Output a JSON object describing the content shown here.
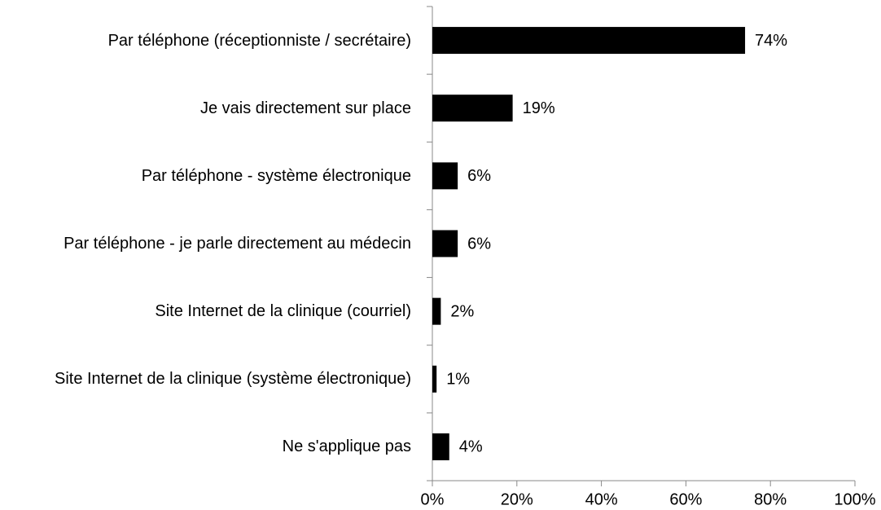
{
  "chart_data": {
    "type": "bar",
    "orientation": "horizontal",
    "categories": [
      "Par téléphone (réceptionniste / secrétaire)",
      "Je vais directement sur place",
      "Par téléphone - système électronique",
      "Par téléphone - je parle directement au médecin",
      "Site Internet de la clinique (courriel)",
      "Site Internet de la clinique (système électronique)",
      "Ne s'applique pas"
    ],
    "values": [
      74,
      19,
      6,
      6,
      2,
      1,
      4
    ],
    "value_labels": [
      "74%",
      "19%",
      "6%",
      "6%",
      "2%",
      "1%",
      "4%"
    ],
    "color": "#000000",
    "xlim": [
      0,
      100
    ],
    "xticks": [
      {
        "value": 0,
        "label": "0%"
      },
      {
        "value": 20,
        "label": "20%"
      },
      {
        "value": 40,
        "label": "40%"
      },
      {
        "value": 60,
        "label": "60%"
      },
      {
        "value": 80,
        "label": "80%"
      },
      {
        "value": 100,
        "label": "100%"
      }
    ],
    "grid": false
  }
}
